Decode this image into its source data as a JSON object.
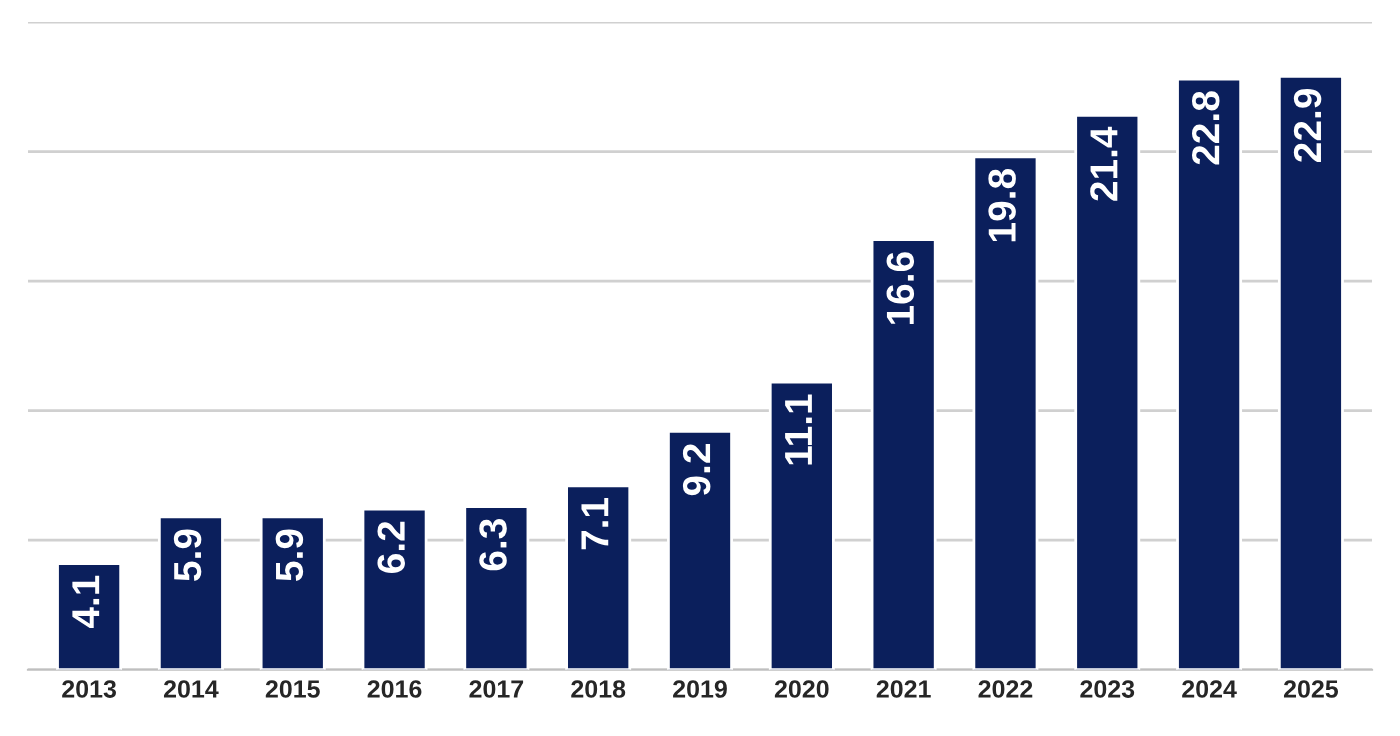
{
  "chart_data": {
    "type": "bar",
    "categories": [
      "2013",
      "2014",
      "2015",
      "2016",
      "2017",
      "2018",
      "2019",
      "2020",
      "2021",
      "2022",
      "2023",
      "2024",
      "2025"
    ],
    "values": [
      4.1,
      5.9,
      5.9,
      6.2,
      6.3,
      7.1,
      9.2,
      11.1,
      16.6,
      19.8,
      21.4,
      22.8,
      22.9
    ],
    "color": "#0b1f5c",
    "ylim": [
      0,
      25
    ],
    "yticks": [
      {
        "value": 0,
        "label": null
      },
      {
        "value": 5,
        "label": null
      },
      {
        "value": 10,
        "label": null
      },
      {
        "value": 15,
        "label": null
      },
      {
        "value": 20,
        "label": null
      },
      {
        "value": 25,
        "label": null
      }
    ],
    "tick_labels": "x",
    "grid": "y",
    "data_labels": true
  }
}
